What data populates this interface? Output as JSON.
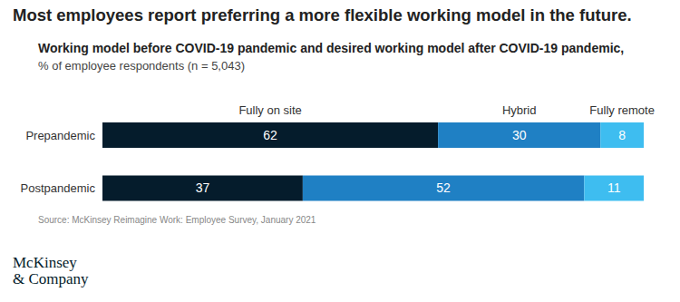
{
  "chart_data": {
    "type": "bar",
    "orientation": "horizontal",
    "stacked": true,
    "data_labels": true,
    "tick_labels": "y",
    "title": "Most employees report preferring a more flexible working model in the future.",
    "subtitle": "Working model before COVID-19 pandemic and desired working model after COVID-19 pandemic,",
    "note": "% of employee respondents (n = 5,043)",
    "source": "Source: McKinsey Reimagine Work: Employee Survey, January 2021",
    "logo": [
      "McKinsey",
      "& Company"
    ],
    "categories": [
      "Prepandemic",
      "Postpandemic"
    ],
    "series": [
      {
        "name": "Fully on site",
        "color": "#051c2c",
        "values": [
          62,
          37
        ]
      },
      {
        "name": "Hybrid",
        "color": "#1f80c4",
        "values": [
          30,
          52
        ]
      },
      {
        "name": "Fully remote",
        "color": "#3ebdf0",
        "values": [
          8,
          11
        ]
      }
    ],
    "xlim": [
      0,
      100
    ]
  }
}
